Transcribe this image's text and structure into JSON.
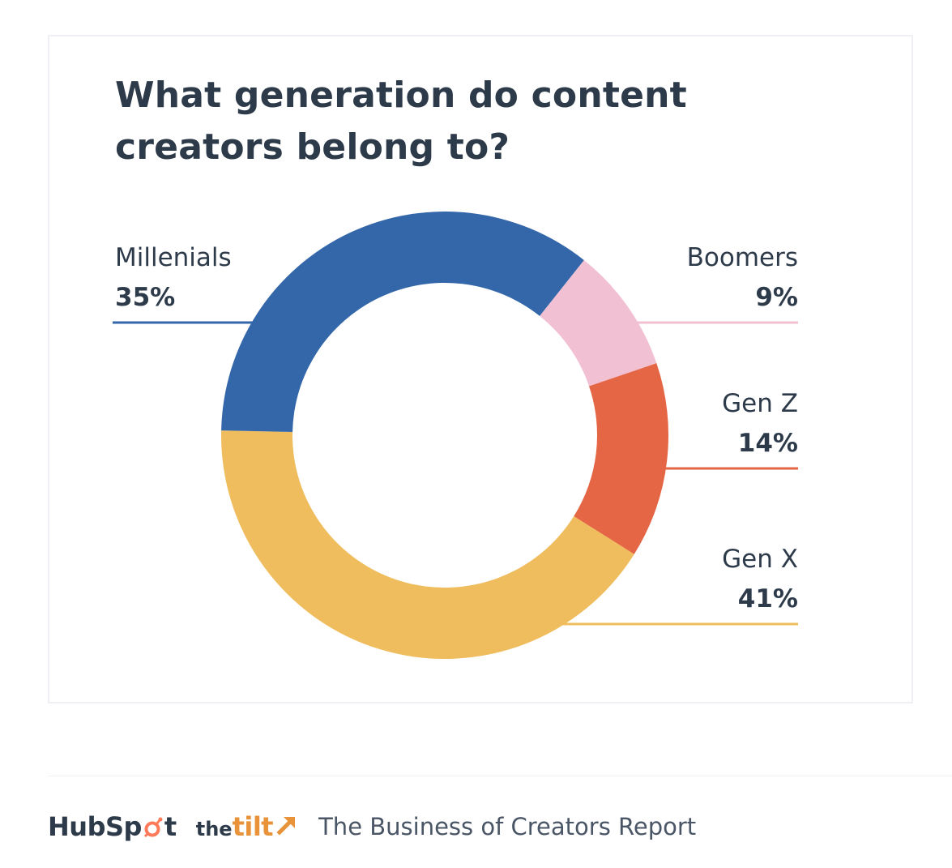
{
  "chart_data": {
    "type": "pie",
    "variant": "donut",
    "title": "What generation do content creators belong to?",
    "slices": [
      {
        "label": "Boomers",
        "value": 9,
        "display": "9%",
        "color": "#f1c0d3"
      },
      {
        "label": "Gen Z",
        "value": 14,
        "display": "14%",
        "color": "#e56645"
      },
      {
        "label": "Gen X",
        "value": 41,
        "display": "41%",
        "color": "#efbd5d"
      },
      {
        "label": "Millenials",
        "value": 35,
        "display": "35%",
        "color": "#3467aa"
      }
    ],
    "legend": "callout labels with colored leader lines"
  },
  "footer": {
    "brand_hubspot": "HubSpot",
    "brand_the": "the",
    "brand_tilt": "tilt",
    "report_title": "The Business of Creators Report"
  },
  "colors": {
    "text": "#2d3a4a",
    "hubspot_accent": "#ff7a59",
    "tilt_accent": "#e8933a"
  },
  "icons": [
    "hubspot-sprocket-icon",
    "tilt-arrow-icon"
  ]
}
